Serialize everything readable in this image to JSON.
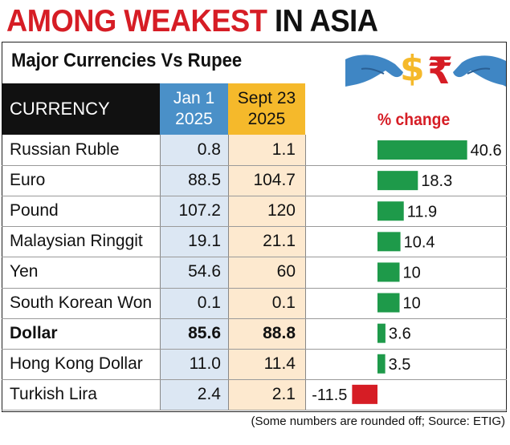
{
  "headline": {
    "part1": "AMONG WEAKEST",
    "part2": "IN ASIA"
  },
  "subtitle": "Major Currencies Vs Rupee",
  "table": {
    "col_currency": "CURRENCY",
    "col_jan_line1": "Jan 1",
    "col_jan_line2": "2025",
    "col_sep_line1": "Sept 23",
    "col_sep_line2": "2025"
  },
  "pct_change_label": "% change",
  "source_note": "(Some numbers are rounded off; Source: ETIG)",
  "colors": {
    "positive": "#1e9a4a",
    "negative": "#d61d25",
    "jan_header": "#4a90c8",
    "sep_header": "#f5b92b"
  },
  "icons": {
    "illustration": "hands-holding-dollar-and-rupee-icon"
  },
  "chart_data": {
    "type": "table",
    "categories": [
      "Russian Ruble",
      "Euro",
      "Pound",
      "Malaysian Ringgit",
      "Yen",
      "South Korean Won",
      "Dollar",
      "Hong Kong Dollar",
      "Turkish Lira"
    ],
    "jan_1_2025": [
      "0.8",
      "88.5",
      "107.2",
      "19.1",
      "54.6",
      "0.1",
      "85.6",
      "11.0",
      "2.4"
    ],
    "sept_23_2025": [
      "1.1",
      "104.7",
      "120",
      "21.1",
      "60",
      "0.1",
      "88.8",
      "11.4",
      "2.1"
    ],
    "pct_change": [
      40.6,
      18.3,
      11.9,
      10.4,
      10,
      10,
      3.6,
      3.5,
      -11.5
    ],
    "pct_change_labels": [
      "40.6",
      "18.3",
      "11.9",
      "10.4",
      "10",
      "10",
      "3.6",
      "3.5",
      "-11.5"
    ],
    "bold_rows": [
      "Dollar"
    ]
  }
}
